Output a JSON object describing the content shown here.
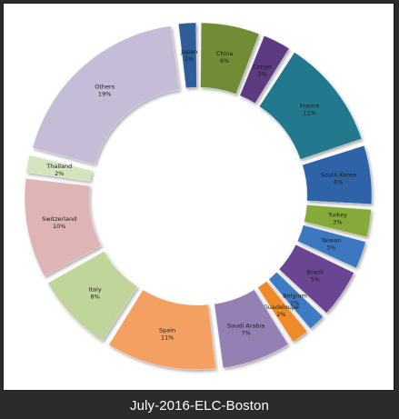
{
  "caption": "July-2016-ELC-Boston",
  "chart_data": {
    "type": "pie",
    "style": "exploded donut",
    "slices": [
      {
        "label": "Japan",
        "percent_label": "2%",
        "value": 2,
        "color": "#2e5d9a"
      },
      {
        "label": "China",
        "percent_label": "6%",
        "value": 6,
        "color": "#6f8c34"
      },
      {
        "label": "Congo",
        "percent_label": "3%",
        "value": 3,
        "color": "#5d3b80"
      },
      {
        "label": "France",
        "percent_label": "11%",
        "value": 11,
        "color": "#23798d"
      },
      {
        "label": "South Korea",
        "percent_label": "6%",
        "value": 6,
        "color": "#2f63a8"
      },
      {
        "label": "Turkey",
        "percent_label": "3%",
        "value": 3,
        "color": "#86a93b"
      },
      {
        "label": "Taiwan",
        "percent_label": "3%",
        "value": 3,
        "color": "#3a78c0"
      },
      {
        "label": "Brazil",
        "percent_label": "5%",
        "value": 5,
        "color": "#6a4592"
      },
      {
        "label": "Belgium",
        "percent_label": "2%",
        "value": 2,
        "color": "#3c7bc4"
      },
      {
        "label": "Guadeloupe",
        "percent_label": "2%",
        "value": 2,
        "color": "#ee8a2c"
      },
      {
        "label": "Saudi Arabia",
        "percent_label": "7%",
        "value": 7,
        "color": "#9580b4"
      },
      {
        "label": "Spain",
        "percent_label": "11%",
        "value": 11,
        "color": "#f4a063"
      },
      {
        "label": "Italy",
        "percent_label": "8%",
        "value": 8,
        "color": "#bfd59a"
      },
      {
        "label": "Switzerland",
        "percent_label": "10%",
        "value": 10,
        "color": "#deb4b4"
      },
      {
        "label": "Thailand",
        "percent_label": "2%",
        "value": 2,
        "color": "#d4e4bd"
      },
      {
        "label": "Others",
        "percent_label": "19%",
        "value": 19,
        "color": "#c5bcd7"
      }
    ]
  }
}
